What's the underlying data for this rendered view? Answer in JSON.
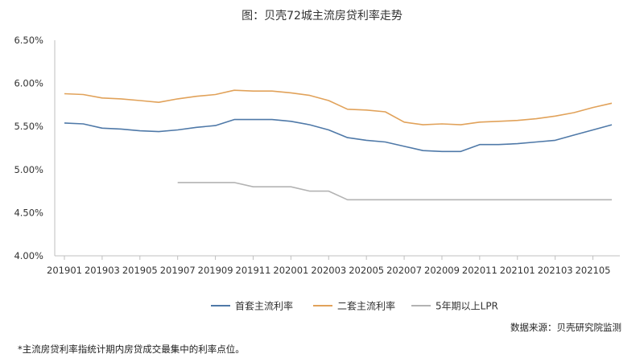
{
  "chart_data": {
    "type": "line",
    "title": "图：贝壳72城主流房贷利率走势",
    "x": [
      "201901",
      "201902",
      "201903",
      "201904",
      "201905",
      "201906",
      "201907",
      "201908",
      "201909",
      "201910",
      "201911",
      "201912",
      "202001",
      "202002",
      "202003",
      "202004",
      "202005",
      "202006",
      "202007",
      "202008",
      "202009",
      "202010",
      "202011",
      "202012",
      "202101",
      "202102",
      "202103",
      "202104",
      "202105",
      "202106"
    ],
    "x_tick_labels": [
      "201901",
      "201903",
      "201905",
      "201907",
      "201909",
      "201911",
      "202001",
      "202003",
      "202005",
      "202007",
      "202009",
      "202011",
      "202101",
      "202103",
      "202105"
    ],
    "y_tick_labels": [
      "4.00%",
      "4.50%",
      "5.00%",
      "5.50%",
      "6.00%",
      "6.50%"
    ],
    "ylim": [
      4.0,
      6.5
    ],
    "y_ticks": [
      4.0,
      4.5,
      5.0,
      5.5,
      6.0,
      6.5
    ],
    "grid": false,
    "legend_position": "bottom",
    "series": [
      {
        "name": "首套主流利率",
        "color": "#4f79a8",
        "values": [
          5.54,
          5.53,
          5.48,
          5.47,
          5.45,
          5.44,
          5.46,
          5.49,
          5.51,
          5.58,
          5.58,
          5.58,
          5.56,
          5.52,
          5.46,
          5.37,
          5.34,
          5.32,
          5.27,
          5.22,
          5.21,
          5.21,
          5.29,
          5.29,
          5.3,
          5.32,
          5.34,
          5.4,
          5.46,
          5.52
        ]
      },
      {
        "name": "二套主流利率",
        "color": "#e1a25a",
        "values": [
          5.88,
          5.87,
          5.83,
          5.82,
          5.8,
          5.78,
          5.82,
          5.85,
          5.87,
          5.92,
          5.91,
          5.91,
          5.89,
          5.86,
          5.8,
          5.7,
          5.69,
          5.67,
          5.55,
          5.52,
          5.53,
          5.52,
          5.55,
          5.56,
          5.57,
          5.59,
          5.62,
          5.66,
          5.72,
          5.77
        ]
      },
      {
        "name": "5年期以上LPR",
        "color": "#b3b3b3",
        "values": [
          null,
          null,
          null,
          null,
          null,
          null,
          4.85,
          4.85,
          4.85,
          4.85,
          4.8,
          4.8,
          4.8,
          4.75,
          4.75,
          4.65,
          4.65,
          4.65,
          4.65,
          4.65,
          4.65,
          4.65,
          4.65,
          4.65,
          4.65,
          4.65,
          4.65,
          4.65,
          4.65,
          4.65
        ]
      }
    ]
  },
  "source_note": "数据来源：贝壳研究院监测",
  "footnote": "*主流房贷利率指统计期内房贷成交最集中的利率点位。"
}
